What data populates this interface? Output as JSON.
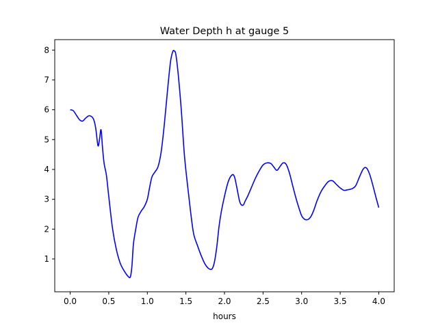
{
  "chart_data": {
    "type": "line",
    "title": "Water Depth h at gauge 5",
    "xlabel": "hours",
    "ylabel": "",
    "xlim": [
      -0.2,
      4.2
    ],
    "ylim": [
      -0.1,
      8.35
    ],
    "xticks": [
      0.0,
      0.5,
      1.0,
      1.5,
      2.0,
      2.5,
      3.0,
      3.5,
      4.0
    ],
    "xtick_labels": [
      "0.0",
      "0.5",
      "1.0",
      "1.5",
      "2.0",
      "2.5",
      "3.0",
      "3.5",
      "4.0"
    ],
    "yticks": [
      1,
      2,
      3,
      4,
      5,
      6,
      7,
      8
    ],
    "ytick_labels": [
      "1",
      "2",
      "3",
      "4",
      "5",
      "6",
      "7",
      "8"
    ],
    "grid": false,
    "line_color": "#0000ff",
    "series": [
      {
        "x": [
          0.0,
          0.04,
          0.08,
          0.12,
          0.16,
          0.2,
          0.25,
          0.3,
          0.33,
          0.36,
          0.38,
          0.4,
          0.42,
          0.44,
          0.47,
          0.5,
          0.55,
          0.6,
          0.65,
          0.7,
          0.75,
          0.78,
          0.8,
          0.82,
          0.85,
          0.88,
          0.92,
          0.96,
          1.0,
          1.03,
          1.06,
          1.1,
          1.14,
          1.18,
          1.22,
          1.26,
          1.3,
          1.33,
          1.35,
          1.37,
          1.4,
          1.44,
          1.48,
          1.52,
          1.56,
          1.6,
          1.65,
          1.7,
          1.75,
          1.8,
          1.84,
          1.87,
          1.9,
          1.93,
          1.96,
          2.0,
          2.05,
          2.1,
          2.13,
          2.16,
          2.2,
          2.24,
          2.27,
          2.3,
          2.35,
          2.4,
          2.45,
          2.5,
          2.55,
          2.6,
          2.64,
          2.68,
          2.72,
          2.76,
          2.8,
          2.84,
          2.88,
          2.92,
          2.96,
          3.0,
          3.04,
          3.08,
          3.12,
          3.16,
          3.2,
          3.25,
          3.3,
          3.35,
          3.4,
          3.45,
          3.5,
          3.55,
          3.6,
          3.65,
          3.7,
          3.75,
          3.8,
          3.84,
          3.88,
          3.92,
          3.96,
          4.0
        ],
        "y": [
          6.0,
          5.97,
          5.82,
          5.67,
          5.62,
          5.72,
          5.8,
          5.7,
          5.4,
          4.8,
          5.0,
          5.33,
          4.7,
          4.2,
          3.8,
          3.1,
          2.0,
          1.3,
          0.85,
          0.6,
          0.42,
          0.4,
          0.75,
          1.5,
          2.0,
          2.4,
          2.6,
          2.75,
          3.0,
          3.4,
          3.75,
          3.92,
          4.1,
          4.6,
          5.5,
          6.6,
          7.6,
          7.95,
          7.97,
          7.85,
          7.2,
          6.0,
          4.5,
          3.5,
          2.6,
          1.85,
          1.45,
          1.1,
          0.82,
          0.67,
          0.67,
          0.9,
          1.4,
          2.1,
          2.6,
          3.1,
          3.6,
          3.82,
          3.75,
          3.4,
          2.9,
          2.8,
          2.95,
          3.1,
          3.4,
          3.7,
          3.95,
          4.15,
          4.22,
          4.2,
          4.08,
          3.97,
          4.1,
          4.22,
          4.17,
          3.9,
          3.5,
          3.1,
          2.75,
          2.45,
          2.33,
          2.32,
          2.42,
          2.65,
          2.95,
          3.25,
          3.45,
          3.6,
          3.62,
          3.5,
          3.38,
          3.3,
          3.32,
          3.35,
          3.45,
          3.75,
          4.02,
          4.05,
          3.85,
          3.5,
          3.1,
          2.72
        ]
      }
    ]
  }
}
